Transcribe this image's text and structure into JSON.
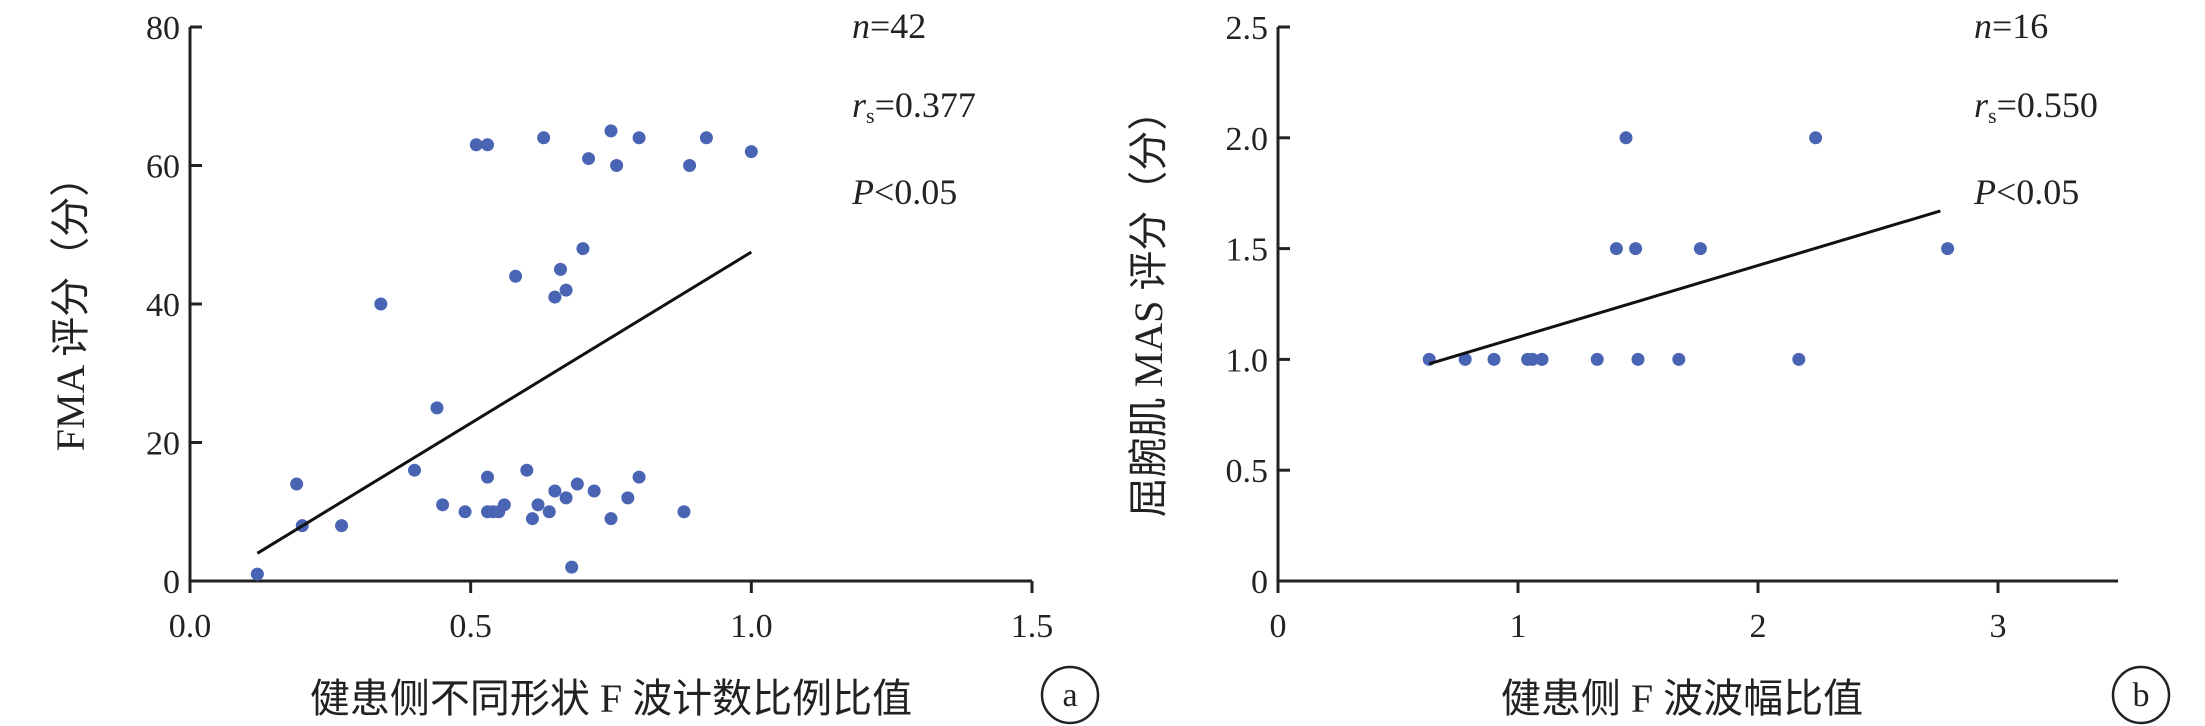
{
  "chart_data": [
    {
      "type": "scatter",
      "panel_label": "a",
      "xlabel": "健患侧不同形状 F 波计数比例比值",
      "ylabel": "FMA 评分（分）",
      "xlim": [
        0,
        1.5
      ],
      "ylim": [
        0,
        80
      ],
      "xticks": [
        "0.0",
        "0.5",
        "1.0",
        "1.5"
      ],
      "yticks": [
        "0",
        "20",
        "40",
        "60",
        "80"
      ],
      "stats": {
        "n_label": "n",
        "n_value": "=42",
        "r_label": "r",
        "r_sub": "s",
        "r_value": "=0.377",
        "p_label": "P",
        "p_value": "<0.05"
      },
      "points": [
        [
          0.12,
          1
        ],
        [
          0.19,
          14
        ],
        [
          0.2,
          8
        ],
        [
          0.27,
          8
        ],
        [
          0.34,
          40
        ],
        [
          0.4,
          16
        ],
        [
          0.44,
          25
        ],
        [
          0.45,
          11
        ],
        [
          0.49,
          10
        ],
        [
          0.51,
          63
        ],
        [
          0.53,
          63
        ],
        [
          0.53,
          15
        ],
        [
          0.53,
          10
        ],
        [
          0.54,
          10
        ],
        [
          0.55,
          10
        ],
        [
          0.56,
          11
        ],
        [
          0.58,
          44
        ],
        [
          0.6,
          16
        ],
        [
          0.61,
          9
        ],
        [
          0.62,
          11
        ],
        [
          0.63,
          64
        ],
        [
          0.64,
          10
        ],
        [
          0.65,
          41
        ],
        [
          0.65,
          13
        ],
        [
          0.66,
          45
        ],
        [
          0.67,
          42
        ],
        [
          0.67,
          12
        ],
        [
          0.68,
          2
        ],
        [
          0.69,
          14
        ],
        [
          0.7,
          48
        ],
        [
          0.71,
          61
        ],
        [
          0.72,
          13
        ],
        [
          0.75,
          65
        ],
        [
          0.75,
          9
        ],
        [
          0.76,
          60
        ],
        [
          0.78,
          12
        ],
        [
          0.8,
          64
        ],
        [
          0.8,
          15
        ],
        [
          0.88,
          10
        ],
        [
          0.89,
          60
        ],
        [
          0.92,
          64
        ],
        [
          1.0,
          62
        ]
      ],
      "fit_line": [
        [
          0.12,
          4
        ],
        [
          1.0,
          47.5
        ]
      ]
    },
    {
      "type": "scatter",
      "panel_label": "b",
      "xlabel": "健患侧 F 波波幅比值",
      "ylabel": "屈腕肌 MAS 评分（分）",
      "xlim": [
        0,
        3.5
      ],
      "ylim": [
        0,
        2.5
      ],
      "xticks": [
        "0",
        "1",
        "2",
        "3"
      ],
      "yticks": [
        "0",
        "0.5",
        "1.0",
        "1.5",
        "2.0",
        "2.5"
      ],
      "stats": {
        "n_label": "n",
        "n_value": "=16",
        "r_label": "r",
        "r_sub": "s",
        "r_value": "=0.550",
        "p_label": "P",
        "p_value": "<0.05"
      },
      "points": [
        [
          0.63,
          1.0
        ],
        [
          0.78,
          1.0
        ],
        [
          0.9,
          1.0
        ],
        [
          1.04,
          1.0
        ],
        [
          1.06,
          1.0
        ],
        [
          1.1,
          1.0
        ],
        [
          1.33,
          1.0
        ],
        [
          1.41,
          1.5
        ],
        [
          1.45,
          2.0
        ],
        [
          1.49,
          1.5
        ],
        [
          1.5,
          1.0
        ],
        [
          1.67,
          1.0
        ],
        [
          1.76,
          1.5
        ],
        [
          2.17,
          1.0
        ],
        [
          2.24,
          2.0
        ],
        [
          2.79,
          1.5
        ]
      ],
      "fit_line": [
        [
          0.63,
          0.98
        ],
        [
          2.76,
          1.67
        ]
      ]
    }
  ]
}
